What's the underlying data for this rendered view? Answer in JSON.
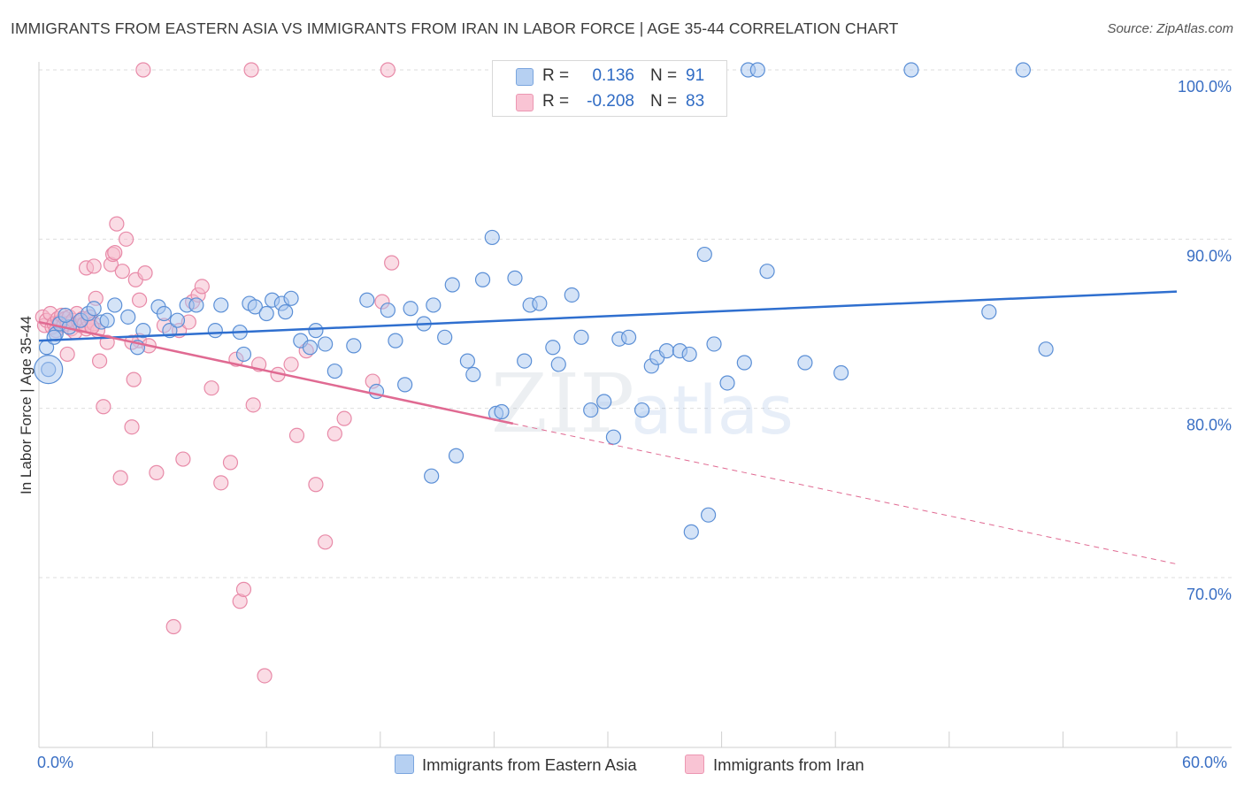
{
  "title": "IMMIGRANTS FROM EASTERN ASIA VS IMMIGRANTS FROM IRAN IN LABOR FORCE | AGE 35-44 CORRELATION CHART",
  "source": "Source: ZipAtlas.com",
  "watermark": {
    "zip": "ZIP",
    "atlas": "atlas"
  },
  "stats": [
    {
      "r_label": "R =",
      "r_value": "0.136",
      "n_label": "N =",
      "n_value": "91"
    },
    {
      "r_label": "R =",
      "r_value": "-0.208",
      "n_label": "N =",
      "n_value": "83"
    }
  ],
  "legend": {
    "a": "Immigrants from Eastern Asia",
    "b": "Immigrants from Iran"
  },
  "colors": {
    "blue_fill": "#a9c8f0",
    "blue_stroke": "#5b8fd6",
    "blue_line": "#2f6fcf",
    "pink_fill": "#f6b9cc",
    "pink_stroke": "#e88aa8",
    "pink_line": "#e06a92",
    "axis_label": "#3a6fc4",
    "grid": "#dddddd"
  },
  "chart_data": {
    "type": "scatter",
    "title": "IMMIGRANTS FROM EASTERN ASIA VS IMMIGRANTS FROM IRAN IN LABOR FORCE | AGE 35-44 CORRELATION CHART",
    "xlabel": "",
    "ylabel": "In Labor Force | Age 35-44",
    "xlim": [
      0,
      60
    ],
    "ylim": [
      60,
      102
    ],
    "x_tick_labels": [
      "0.0%",
      "60.0%"
    ],
    "y_ticks": [
      70,
      80,
      90,
      100
    ],
    "y_tick_labels": [
      "70.0%",
      "80.0%",
      "90.0%",
      "100.0%"
    ],
    "grid": true,
    "legend_position": "bottom",
    "series": [
      {
        "name": "Immigrants from Eastern Asia",
        "r": 0.136,
        "n": 91,
        "trend": {
          "x": [
            0,
            60
          ],
          "y": [
            84.0,
            86.9
          ]
        },
        "points": [
          [
            0.4,
            83.6
          ],
          [
            0.5,
            82.3
          ],
          [
            0.9,
            84.4
          ],
          [
            1.1,
            85.0
          ],
          [
            1.6,
            84.8
          ],
          [
            2.2,
            85.2
          ],
          [
            2.6,
            85.6
          ],
          [
            2.9,
            85.9
          ],
          [
            3.3,
            85.1
          ],
          [
            3.6,
            85.2
          ],
          [
            4.0,
            86.1
          ],
          [
            4.7,
            85.4
          ],
          [
            5.2,
            83.6
          ],
          [
            5.5,
            84.6
          ],
          [
            6.3,
            86.0
          ],
          [
            6.6,
            85.6
          ],
          [
            6.9,
            84.6
          ],
          [
            7.3,
            85.2
          ],
          [
            7.8,
            86.1
          ],
          [
            8.3,
            86.1
          ],
          [
            9.3,
            84.6
          ],
          [
            9.6,
            86.1
          ],
          [
            10.6,
            84.5
          ],
          [
            11.1,
            86.2
          ],
          [
            11.4,
            86.0
          ],
          [
            10.8,
            83.2
          ],
          [
            12.0,
            85.6
          ],
          [
            12.3,
            86.4
          ],
          [
            12.8,
            86.2
          ],
          [
            13.0,
            85.7
          ],
          [
            13.3,
            86.5
          ],
          [
            13.8,
            84.0
          ],
          [
            14.3,
            83.6
          ],
          [
            14.6,
            84.6
          ],
          [
            15.1,
            83.8
          ],
          [
            15.6,
            82.2
          ],
          [
            16.6,
            83.7
          ],
          [
            17.3,
            86.4
          ],
          [
            17.8,
            81.0
          ],
          [
            18.4,
            85.8
          ],
          [
            18.8,
            84.0
          ],
          [
            19.3,
            81.4
          ],
          [
            19.6,
            85.9
          ],
          [
            20.3,
            85.0
          ],
          [
            20.8,
            86.1
          ],
          [
            21.4,
            84.2
          ],
          [
            21.8,
            87.3
          ],
          [
            22.6,
            82.8
          ],
          [
            22.9,
            82.0
          ],
          [
            23.4,
            87.6
          ],
          [
            23.9,
            90.1
          ],
          [
            24.1,
            79.7
          ],
          [
            24.4,
            79.8
          ],
          [
            25.1,
            87.7
          ],
          [
            25.6,
            82.8
          ],
          [
            25.9,
            86.1
          ],
          [
            26.4,
            86.2
          ],
          [
            27.1,
            83.6
          ],
          [
            27.4,
            82.6
          ],
          [
            28.1,
            86.7
          ],
          [
            28.6,
            84.2
          ],
          [
            29.1,
            79.9
          ],
          [
            29.8,
            80.4
          ],
          [
            30.3,
            78.3
          ],
          [
            30.6,
            84.1
          ],
          [
            31.1,
            84.2
          ],
          [
            31.8,
            79.9
          ],
          [
            32.3,
            82.5
          ],
          [
            32.6,
            83.0
          ],
          [
            33.1,
            83.4
          ],
          [
            33.8,
            83.4
          ],
          [
            34.3,
            83.2
          ],
          [
            35.1,
            89.1
          ],
          [
            35.6,
            83.8
          ],
          [
            36.3,
            81.5
          ],
          [
            37.4,
            100
          ],
          [
            37.9,
            100
          ],
          [
            35.3,
            73.7
          ],
          [
            34.4,
            72.7
          ],
          [
            37.2,
            82.7
          ],
          [
            38.4,
            88.1
          ],
          [
            40.4,
            82.7
          ],
          [
            42.3,
            82.1
          ],
          [
            46.0,
            100
          ],
          [
            51.9,
            100
          ],
          [
            50.1,
            85.7
          ],
          [
            53.1,
            83.5
          ],
          [
            20.7,
            76.0
          ],
          [
            22.0,
            77.2
          ],
          [
            0.8,
            84.2
          ],
          [
            1.4,
            85.5
          ]
        ]
      },
      {
        "name": "Immigrants from Iran",
        "r": -0.208,
        "n": 83,
        "trend": {
          "x": [
            0,
            25
          ],
          "y": [
            85.1,
            79.1
          ]
        },
        "trend_dashed": {
          "x": [
            25,
            60
          ],
          "y": [
            79.1,
            70.8
          ]
        },
        "points": [
          [
            0.2,
            85.4
          ],
          [
            0.3,
            84.9
          ],
          [
            0.4,
            85.2
          ],
          [
            0.6,
            85.6
          ],
          [
            0.7,
            84.8
          ],
          [
            0.8,
            85.0
          ],
          [
            0.9,
            84.6
          ],
          [
            1.0,
            85.3
          ],
          [
            1.1,
            85.1
          ],
          [
            1.2,
            85.5
          ],
          [
            1.3,
            84.9
          ],
          [
            1.4,
            85.3
          ],
          [
            1.5,
            85.0
          ],
          [
            1.6,
            85.4
          ],
          [
            1.7,
            84.7
          ],
          [
            1.8,
            85.2
          ],
          [
            1.9,
            84.5
          ],
          [
            2.0,
            85.6
          ],
          [
            2.1,
            85.1
          ],
          [
            2.2,
            84.9
          ],
          [
            2.3,
            85.3
          ],
          [
            2.4,
            85.0
          ],
          [
            2.5,
            84.7
          ],
          [
            2.6,
            85.2
          ],
          [
            2.7,
            85.4
          ],
          [
            2.8,
            84.8
          ],
          [
            2.9,
            85.0
          ],
          [
            3.1,
            84.6
          ],
          [
            1.5,
            83.2
          ],
          [
            2.5,
            88.3
          ],
          [
            2.8,
            84.8
          ],
          [
            2.9,
            88.4
          ],
          [
            3.0,
            86.5
          ],
          [
            3.2,
            82.8
          ],
          [
            3.4,
            80.1
          ],
          [
            3.6,
            83.9
          ],
          [
            3.8,
            88.5
          ],
          [
            3.9,
            89.1
          ],
          [
            4.0,
            89.2
          ],
          [
            4.1,
            90.9
          ],
          [
            4.3,
            75.9
          ],
          [
            4.4,
            88.1
          ],
          [
            4.6,
            90.0
          ],
          [
            4.9,
            78.9
          ],
          [
            5.0,
            81.7
          ],
          [
            5.1,
            87.6
          ],
          [
            5.3,
            86.4
          ],
          [
            5.6,
            88.0
          ],
          [
            5.3,
            84.0
          ],
          [
            5.8,
            83.7
          ],
          [
            6.2,
            76.2
          ],
          [
            6.6,
            84.9
          ],
          [
            7.1,
            67.1
          ],
          [
            7.4,
            84.6
          ],
          [
            7.6,
            77.0
          ],
          [
            7.9,
            85.1
          ],
          [
            8.1,
            86.3
          ],
          [
            8.4,
            86.7
          ],
          [
            8.6,
            87.2
          ],
          [
            9.1,
            81.2
          ],
          [
            9.6,
            75.6
          ],
          [
            10.1,
            76.8
          ],
          [
            10.4,
            82.9
          ],
          [
            10.6,
            68.6
          ],
          [
            10.8,
            69.3
          ],
          [
            11.3,
            80.2
          ],
          [
            11.6,
            82.6
          ],
          [
            11.9,
            64.2
          ],
          [
            12.6,
            82.0
          ],
          [
            13.3,
            82.6
          ],
          [
            13.6,
            78.4
          ],
          [
            14.1,
            83.4
          ],
          [
            14.6,
            75.5
          ],
          [
            15.1,
            72.1
          ],
          [
            15.6,
            78.5
          ],
          [
            16.1,
            79.4
          ],
          [
            17.6,
            81.6
          ],
          [
            18.1,
            86.3
          ],
          [
            18.6,
            88.6
          ],
          [
            4.9,
            83.9
          ],
          [
            5.5,
            100
          ],
          [
            11.2,
            100
          ],
          [
            18.4,
            100
          ]
        ]
      }
    ]
  }
}
